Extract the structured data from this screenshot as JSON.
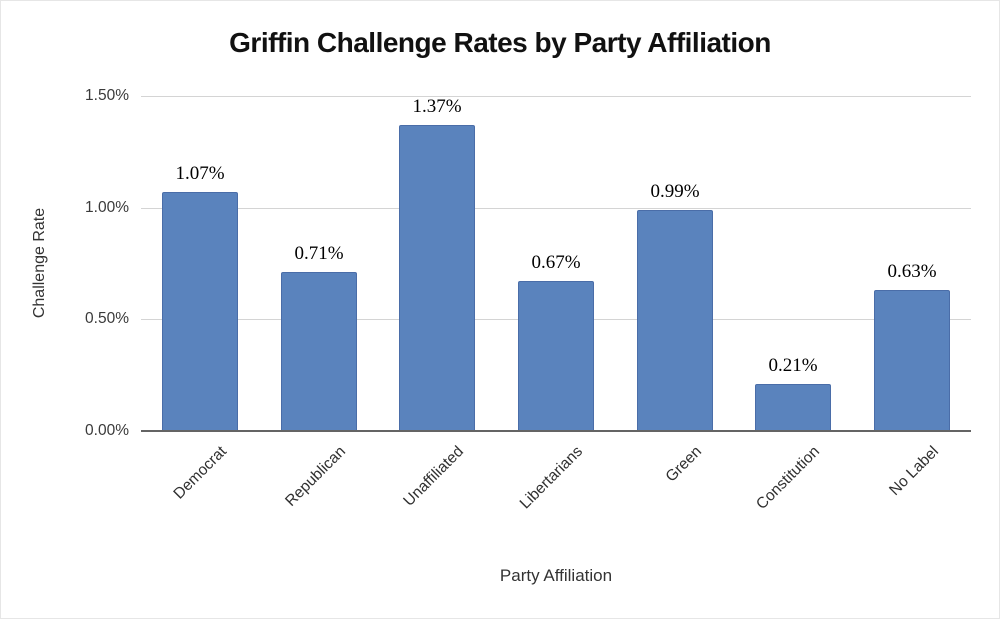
{
  "chart_data": {
    "type": "bar",
    "title": "Griffin Challenge Rates by Party Affiliation",
    "xlabel": "Party Affiliation",
    "ylabel": "Challenge Rate",
    "categories": [
      "Democrat",
      "Republican",
      "Unaffiliated",
      "Libertarians",
      "Green",
      "Constitution",
      "No Label"
    ],
    "values": [
      1.07,
      0.71,
      1.37,
      0.67,
      0.99,
      0.21,
      0.63
    ],
    "data_labels": [
      "1.07%",
      "0.71%",
      "1.37%",
      "0.67%",
      "0.99%",
      "0.21%",
      "0.63%"
    ],
    "y_ticks": [
      "1.50%",
      "1.00%",
      "0.50%",
      "0.00%"
    ],
    "ylim": [
      0,
      1.5
    ],
    "grid": true,
    "legend": "none",
    "bar_color": "#5a83bd",
    "bar_border_color": "#4a6da8",
    "gridline_color": "#d4d4d4",
    "axis_line_color": "#646464"
  }
}
